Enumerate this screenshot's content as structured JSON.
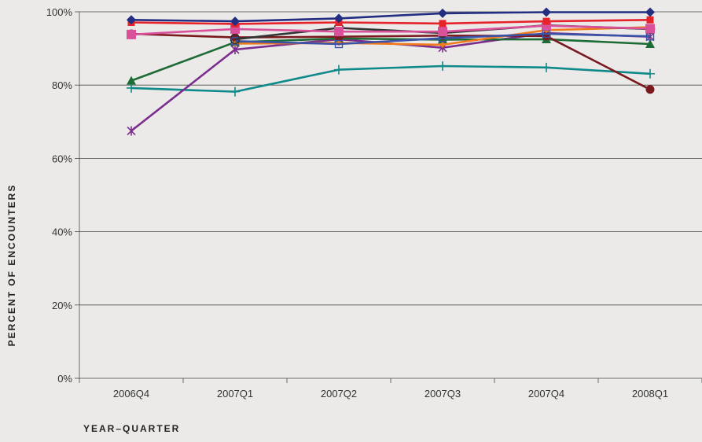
{
  "chart_data": {
    "type": "line",
    "categories": [
      "2006Q4",
      "2007Q1",
      "2007Q2",
      "2007Q3",
      "2007Q4",
      "2008Q1"
    ],
    "ylabel": "PERCENT OF ENCOUNTERS",
    "xlabel": "YEAR–QUARTER",
    "ylim": [
      0,
      100
    ],
    "yticks": [
      0,
      20,
      40,
      60,
      80,
      100
    ],
    "ytick_labels": [
      "0%",
      "20%",
      "40%",
      "60%",
      "80%",
      "100%"
    ],
    "grid": true,
    "series": [
      {
        "color": "#0e8a8a",
        "marker": "plus",
        "values": [
          79.2,
          78.2,
          84.2,
          85.2,
          84.8,
          83.1
        ]
      },
      {
        "color": "#7b2d8e",
        "marker": "x",
        "values": [
          67.5,
          89.7,
          92.5,
          90.2,
          94.2,
          93.2
        ]
      },
      {
        "color": "#1d6b35",
        "marker": "triangle",
        "values": [
          81.2,
          91.7,
          92.7,
          92.4,
          92.5,
          91.2
        ]
      },
      {
        "color": "#7a1a1f",
        "marker": "circle",
        "values": [
          94.0,
          93.0,
          93.2,
          93.5,
          93.4,
          78.8
        ]
      },
      {
        "color": "#f07c1c",
        "marker": "diamond-small",
        "values": [
          null,
          91.3,
          91.5,
          91.0,
          95.0,
          95.8
        ]
      },
      {
        "color": "#3a52a8",
        "marker": "square-open",
        "values": [
          null,
          92.0,
          91.2,
          92.8,
          94.0,
          93.3
        ]
      },
      {
        "color": "#333333",
        "marker": "circle-open",
        "values": [
          null,
          92.5,
          95.6,
          94.2,
          96.3,
          95.3
        ]
      },
      {
        "color": "#d9519b",
        "marker": "square",
        "values": [
          93.8,
          95.3,
          94.6,
          94.6,
          96.2,
          95.4
        ]
      },
      {
        "color": "#e6232b",
        "marker": "square-small",
        "values": [
          97.1,
          96.7,
          97.1,
          96.8,
          97.4,
          97.8
        ]
      },
      {
        "color": "#232e82",
        "marker": "diamond",
        "values": [
          97.8,
          97.4,
          98.2,
          99.6,
          99.9,
          99.9
        ]
      }
    ]
  }
}
